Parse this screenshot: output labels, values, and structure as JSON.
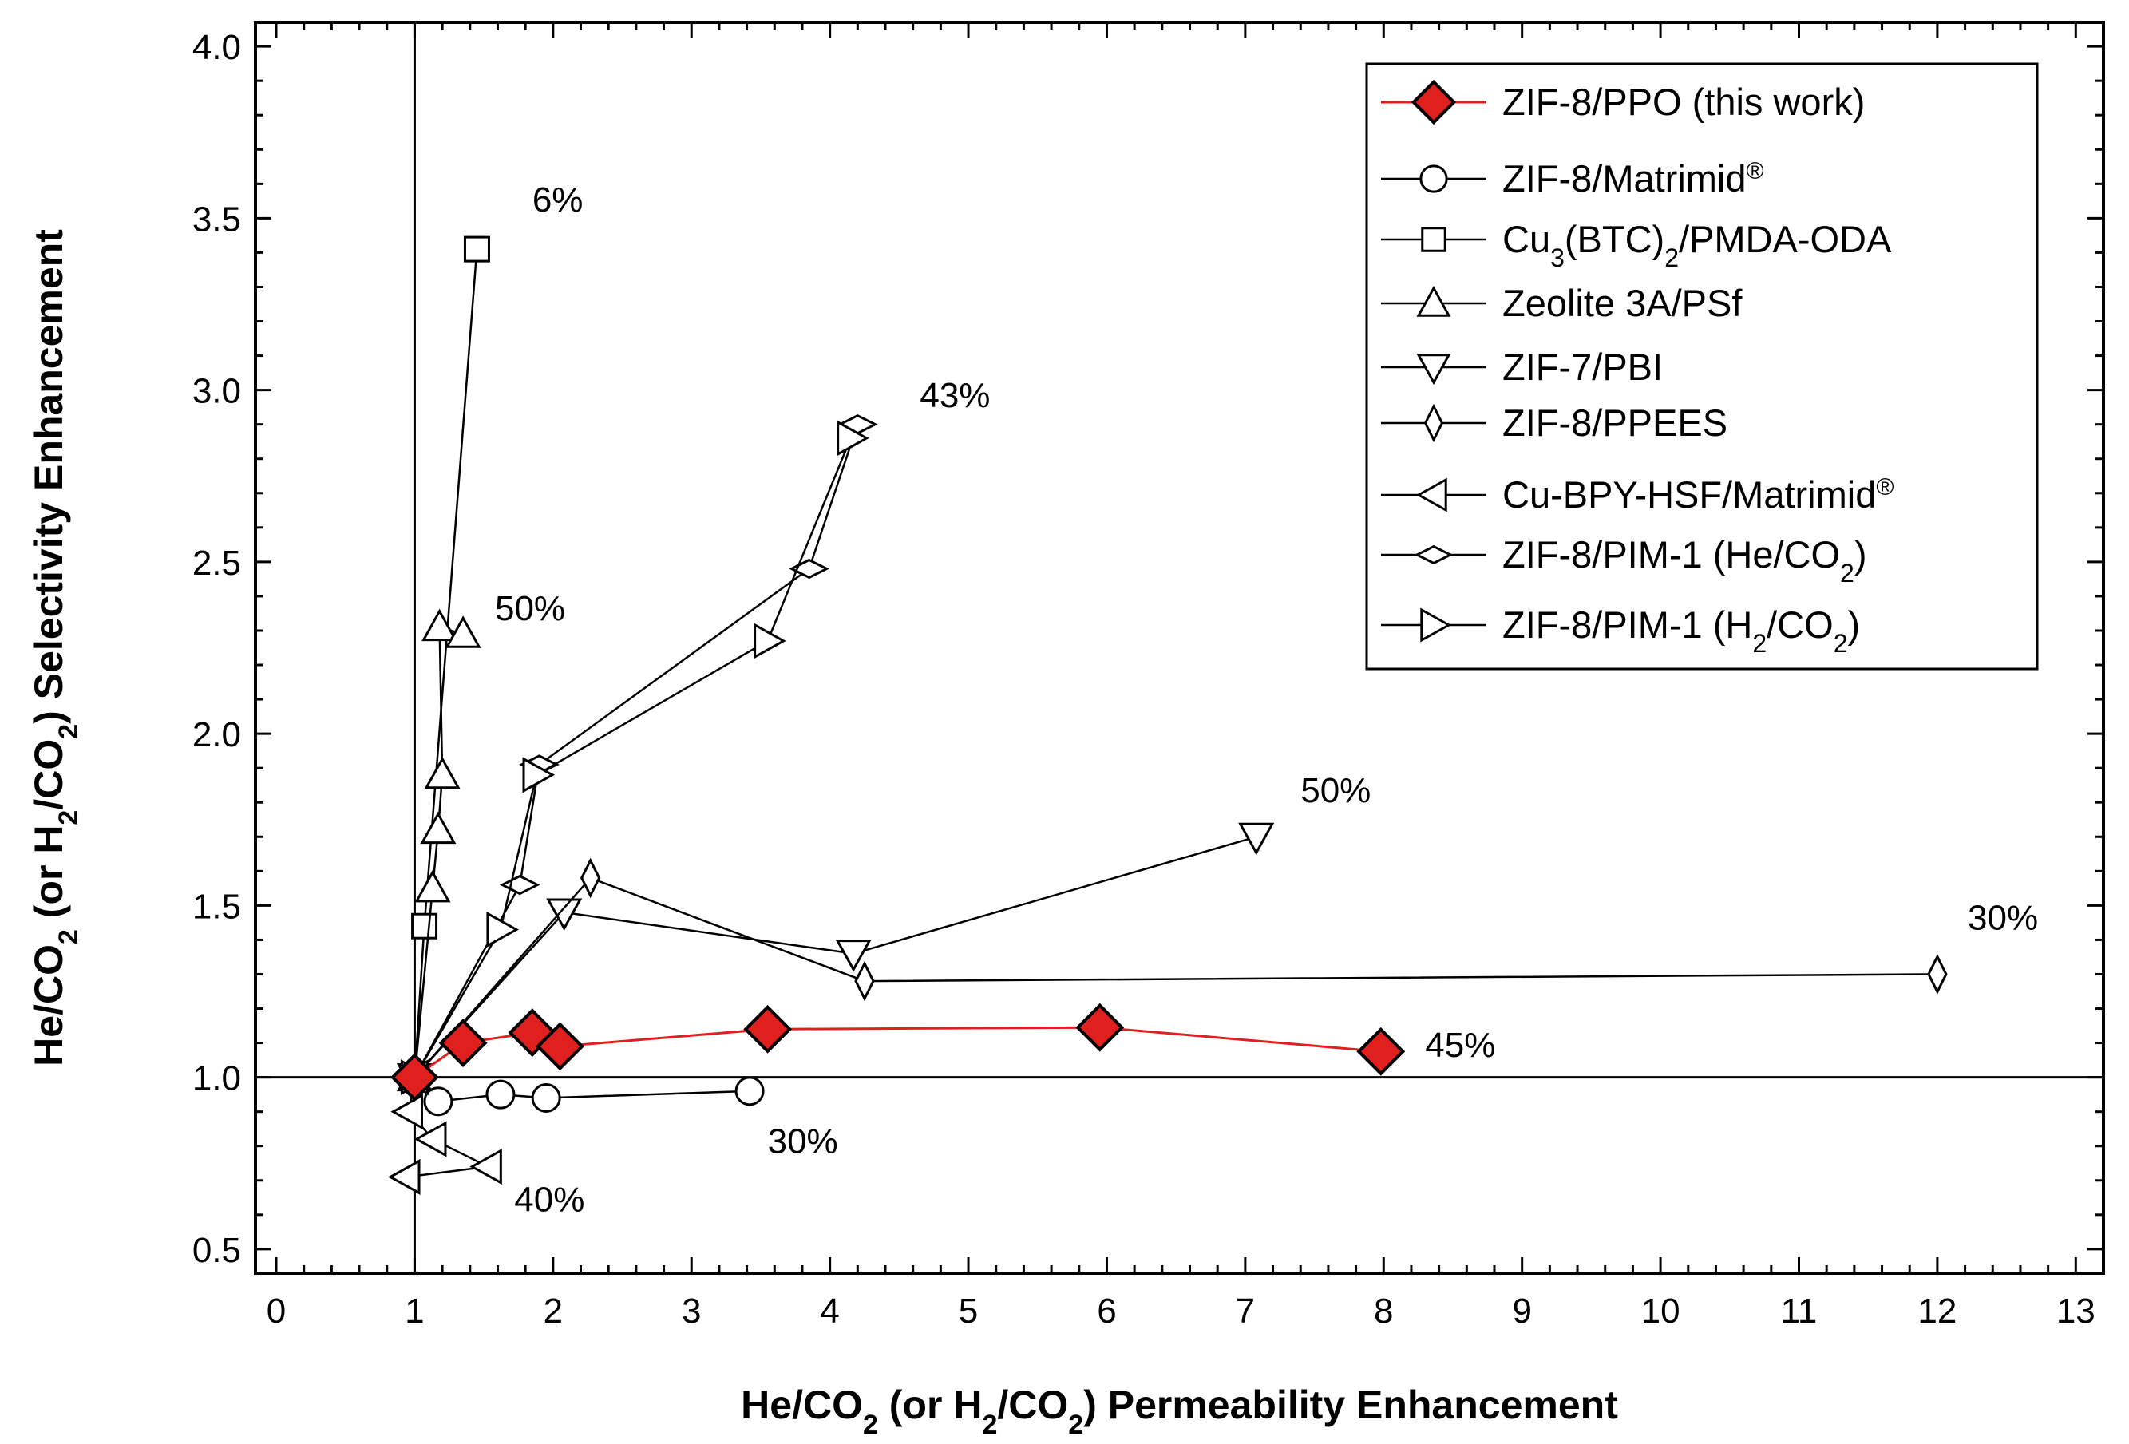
{
  "chart_data": {
    "type": "scatter",
    "xlabel": {
      "pre": "He/CO",
      "sub1": "2",
      "mid": " (or H",
      "sub2": "2",
      "mid2": "/CO",
      "sub3": "2",
      "post": ") Permeability Enhancement"
    },
    "ylabel": {
      "pre": "He/CO",
      "sub1": "2",
      "mid": " (or H",
      "sub2": "2",
      "mid2": "/CO",
      "sub3": "2",
      "post": ") Selectivity Enhancement"
    },
    "xlim": [
      -0.15,
      13.2
    ],
    "ylim": [
      0.43,
      4.07
    ],
    "xticks": [
      0,
      1,
      2,
      3,
      4,
      5,
      6,
      7,
      8,
      9,
      10,
      11,
      12,
      13
    ],
    "yticks": [
      0.5,
      1.0,
      1.5,
      2.0,
      2.5,
      3.0,
      3.5,
      4.0
    ],
    "ytick_labels": [
      "0.5",
      "1.0",
      "1.5",
      "2.0",
      "2.5",
      "3.0",
      "3.5",
      "4.0"
    ],
    "reference_lines": {
      "x": 1,
      "y": 1
    },
    "series": [
      {
        "name": "ZIF-8/PPO (this work)",
        "marker": "diamond-filled",
        "color": "#e0201e",
        "x": [
          1.0,
          1.35,
          1.85,
          2.05,
          3.55,
          5.95,
          7.98
        ],
        "y": [
          1.0,
          1.1,
          1.13,
          1.09,
          1.14,
          1.145,
          1.075
        ]
      },
      {
        "name": "ZIF-8/Matrimid",
        "sup": "®",
        "marker": "circle",
        "color": "#000000",
        "x": [
          1.0,
          1.17,
          1.62,
          1.95,
          3.42
        ],
        "y": [
          1.0,
          0.93,
          0.95,
          0.94,
          0.96
        ]
      },
      {
        "name": "Cu3(BTC)2/PMDA-ODA",
        "label_parts": {
          "a": "Cu",
          "s1": "3",
          "b": "(BTC)",
          "s2": "2",
          "c": "/PMDA-ODA"
        },
        "marker": "square",
        "color": "#000000",
        "x": [
          1.0,
          1.07,
          1.45
        ],
        "y": [
          1.0,
          1.44,
          3.41
        ]
      },
      {
        "name": "Zeolite 3A/PSf",
        "marker": "triangle-up",
        "color": "#000000",
        "x": [
          1.0,
          1.13,
          1.17,
          1.2,
          1.18,
          1.35
        ],
        "y": [
          1.0,
          1.55,
          1.72,
          1.88,
          2.31,
          2.29
        ]
      },
      {
        "name": "ZIF-7/PBI",
        "marker": "triangle-down",
        "color": "#000000",
        "x": [
          1.0,
          2.08,
          4.17,
          7.08
        ],
        "y": [
          1.0,
          1.48,
          1.36,
          1.7
        ]
      },
      {
        "name": "ZIF-8/PPEES",
        "marker": "thin-diamond",
        "color": "#000000",
        "x": [
          1.0,
          2.27,
          4.25,
          12.0
        ],
        "y": [
          1.0,
          1.58,
          1.28,
          1.3
        ]
      },
      {
        "name": "Cu-BPY-HSF/Matrimid",
        "sup": "®",
        "marker": "triangle-left",
        "color": "#000000",
        "x": [
          1.0,
          0.96,
          1.13,
          1.53,
          0.94
        ],
        "y": [
          1.0,
          0.9,
          0.82,
          0.74,
          0.71
        ]
      },
      {
        "name": "ZIF-8/PIM-1 (He/CO2)",
        "label_parts": {
          "a": "ZIF-8/PIM-1 (He/CO",
          "s1": "2",
          "b": ")"
        },
        "marker": "flat-diamond",
        "color": "#000000",
        "x": [
          1.0,
          1.76,
          1.9,
          3.85,
          4.2
        ],
        "y": [
          1.0,
          1.56,
          1.91,
          2.48,
          2.9
        ]
      },
      {
        "name": "ZIF-8/PIM-1 (H2/CO2)",
        "label_parts": {
          "a": "ZIF-8/PIM-1 (H",
          "s1": "2",
          "b": "/CO",
          "s2": "2",
          "c": ")"
        },
        "marker": "triangle-right",
        "color": "#000000",
        "x": [
          1.0,
          1.62,
          1.88,
          3.55,
          4.15
        ],
        "y": [
          1.0,
          1.43,
          1.88,
          2.27,
          2.86
        ]
      }
    ],
    "annotations": [
      {
        "text": "6%",
        "x": 1.85,
        "y": 3.52,
        "color": "#000000"
      },
      {
        "text": "43%",
        "x": 4.65,
        "y": 2.95,
        "color": "#000000"
      },
      {
        "text": "50%",
        "x": 1.58,
        "y": 2.33,
        "color": "#000000"
      },
      {
        "text": "50%",
        "x": 7.4,
        "y": 1.8,
        "color": "#000000"
      },
      {
        "text": "30%",
        "x": 12.22,
        "y": 1.43,
        "color": "#000000"
      },
      {
        "text": "45%",
        "x": 8.3,
        "y": 1.06,
        "color": "#e0201e"
      },
      {
        "text": "30%",
        "x": 3.55,
        "y": 0.78,
        "color": "#000000"
      },
      {
        "text": "40%",
        "x": 1.72,
        "y": 0.61,
        "color": "#000000"
      }
    ]
  }
}
